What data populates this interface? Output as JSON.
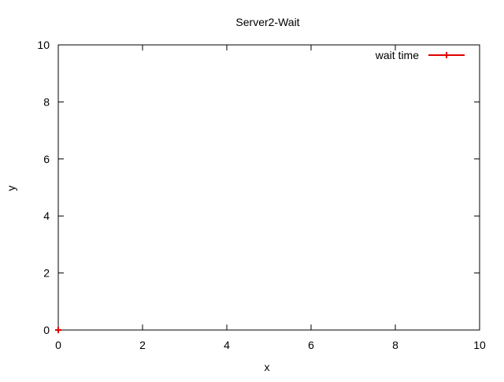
{
  "chart_data": {
    "type": "line",
    "title": "Server2-Wait",
    "xlabel": "x",
    "ylabel": "y",
    "xlim": [
      0,
      10
    ],
    "ylim": [
      0,
      10
    ],
    "xticks": [
      0,
      2,
      4,
      6,
      8,
      10
    ],
    "yticks": [
      0,
      2,
      4,
      6,
      8,
      10
    ],
    "x_tick_labels": [
      "0",
      "2",
      "4",
      "6",
      "8",
      "10"
    ],
    "y_tick_labels": [
      "0",
      "2",
      "4",
      "6",
      "8",
      "10"
    ],
    "grid": false,
    "legend_position": "top-right",
    "series": [
      {
        "name": "wait time",
        "color": "#e00000",
        "marker": "plus",
        "x": [
          0
        ],
        "y": [
          0
        ]
      }
    ]
  }
}
